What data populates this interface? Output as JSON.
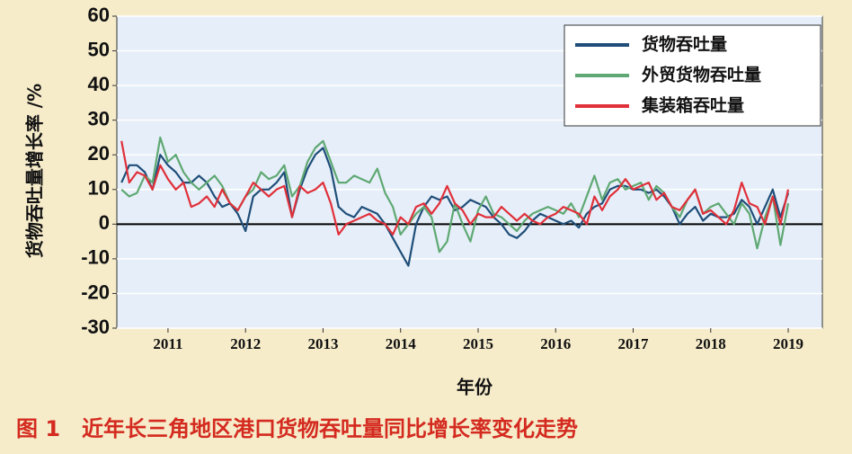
{
  "chart_data": {
    "type": "line",
    "caption": "图 1　近年长三角地区港口货物吞吐量同比增长率变化走势",
    "x_label": "年份",
    "y_label": "货物吞吐量增长率 /%",
    "x": [
      2010.9,
      2011.0,
      2011.1,
      2011.2,
      2011.3,
      2011.4,
      2011.5,
      2011.6,
      2011.7,
      2011.8,
      2011.9,
      2012.0,
      2012.1,
      2012.2,
      2012.3,
      2012.4,
      2012.5,
      2012.6,
      2012.7,
      2012.8,
      2012.9,
      2013.0,
      2013.1,
      2013.2,
      2013.3,
      2013.4,
      2013.5,
      2013.6,
      2013.7,
      2013.8,
      2013.9,
      2014.0,
      2014.1,
      2014.2,
      2014.3,
      2014.4,
      2014.5,
      2014.6,
      2014.7,
      2014.8,
      2014.9,
      2015.0,
      2015.1,
      2015.2,
      2015.3,
      2015.4,
      2015.5,
      2015.6,
      2015.7,
      2015.8,
      2015.9,
      2016.0,
      2016.1,
      2016.2,
      2016.3,
      2016.4,
      2016.5,
      2016.6,
      2016.7,
      2016.8,
      2016.9,
      2017.0,
      2017.1,
      2017.2,
      2017.3,
      2017.4,
      2017.5,
      2017.6,
      2017.7,
      2017.8,
      2017.9,
      2018.0,
      2018.1,
      2018.2,
      2018.3,
      2018.4,
      2018.5,
      2018.6,
      2018.7,
      2018.8,
      2018.9,
      2019.0,
      2019.1,
      2019.2,
      2019.3,
      2019.4,
      2019.5
    ],
    "series": [
      {
        "name": "货物吞吐量",
        "color": "#1f4e79",
        "values": [
          12,
          17,
          17,
          15,
          10,
          20,
          17,
          15,
          12,
          12,
          14,
          12,
          8,
          5,
          6,
          3,
          -2,
          8,
          10,
          10,
          12,
          15,
          2,
          10,
          16,
          20,
          22,
          16,
          5,
          3,
          2,
          5,
          4,
          3,
          0,
          -4,
          -8,
          -12,
          0,
          5,
          8,
          7,
          8,
          4,
          5,
          7,
          6,
          5,
          2,
          0,
          -3,
          -4,
          -2,
          1,
          3,
          2,
          1,
          0,
          1,
          -1,
          3,
          5,
          6,
          10,
          11,
          11,
          10,
          10,
          9,
          10,
          8,
          5,
          0,
          3,
          5,
          1,
          3,
          2,
          2,
          3,
          7,
          5,
          0,
          5,
          10,
          2,
          9
        ]
      },
      {
        "name": "外贸货物吞吐量",
        "color": "#5fa873",
        "values": [
          10,
          8,
          9,
          14,
          12,
          25,
          18,
          20,
          15,
          12,
          10,
          12,
          14,
          11,
          6,
          4,
          8,
          10,
          15,
          13,
          14,
          17,
          8,
          11,
          18,
          22,
          24,
          18,
          12,
          12,
          14,
          13,
          12,
          16,
          9,
          5,
          -3,
          0,
          3,
          5,
          2,
          -8,
          -5,
          6,
          0,
          -5,
          4,
          8,
          3,
          2,
          0,
          -2,
          1,
          3,
          4,
          5,
          4,
          3,
          6,
          2,
          8,
          14,
          7,
          12,
          13,
          10,
          11,
          12,
          7,
          11,
          9,
          5,
          2,
          7,
          10,
          3,
          5,
          6,
          3,
          0,
          6,
          3,
          -7,
          2,
          8,
          -6,
          6
        ]
      },
      {
        "name": "集装箱吞吐量",
        "color": "#e0303a",
        "values": [
          24,
          12,
          15,
          14,
          10,
          17,
          13,
          10,
          12,
          5,
          6,
          8,
          5,
          10,
          6,
          4,
          8,
          12,
          10,
          8,
          10,
          11,
          2,
          11,
          9,
          10,
          12,
          6,
          -3,
          0,
          1,
          2,
          3,
          1,
          0,
          -3,
          2,
          0,
          5,
          6,
          3,
          6,
          11,
          6,
          4,
          0,
          3,
          2,
          2,
          5,
          3,
          1,
          3,
          1,
          0,
          2,
          3,
          5,
          4,
          3,
          0,
          8,
          4,
          8,
          10,
          13,
          10,
          11,
          12,
          7,
          9,
          5,
          4,
          7,
          10,
          3,
          4,
          2,
          0,
          4,
          12,
          6,
          5,
          0,
          8,
          0,
          10
        ]
      }
    ],
    "xlim": [
      2010.84,
      2019.94
    ],
    "xticks": [
      {
        "value": 2011.5,
        "label": "2011"
      },
      {
        "value": 2012.5,
        "label": "2012"
      },
      {
        "value": 2013.5,
        "label": "2013"
      },
      {
        "value": 2014.5,
        "label": "2014"
      },
      {
        "value": 2015.5,
        "label": "2015"
      },
      {
        "value": 2016.5,
        "label": "2016"
      },
      {
        "value": 2017.5,
        "label": "2017"
      },
      {
        "value": 2018.5,
        "label": "2018"
      },
      {
        "value": 2019.5,
        "label": "2019"
      }
    ],
    "ylim": [
      -30,
      60
    ],
    "yticks": [
      -30,
      -20,
      -10,
      0,
      10,
      20,
      30,
      40,
      50,
      60
    ],
    "grid": true,
    "legend": "upper right"
  }
}
